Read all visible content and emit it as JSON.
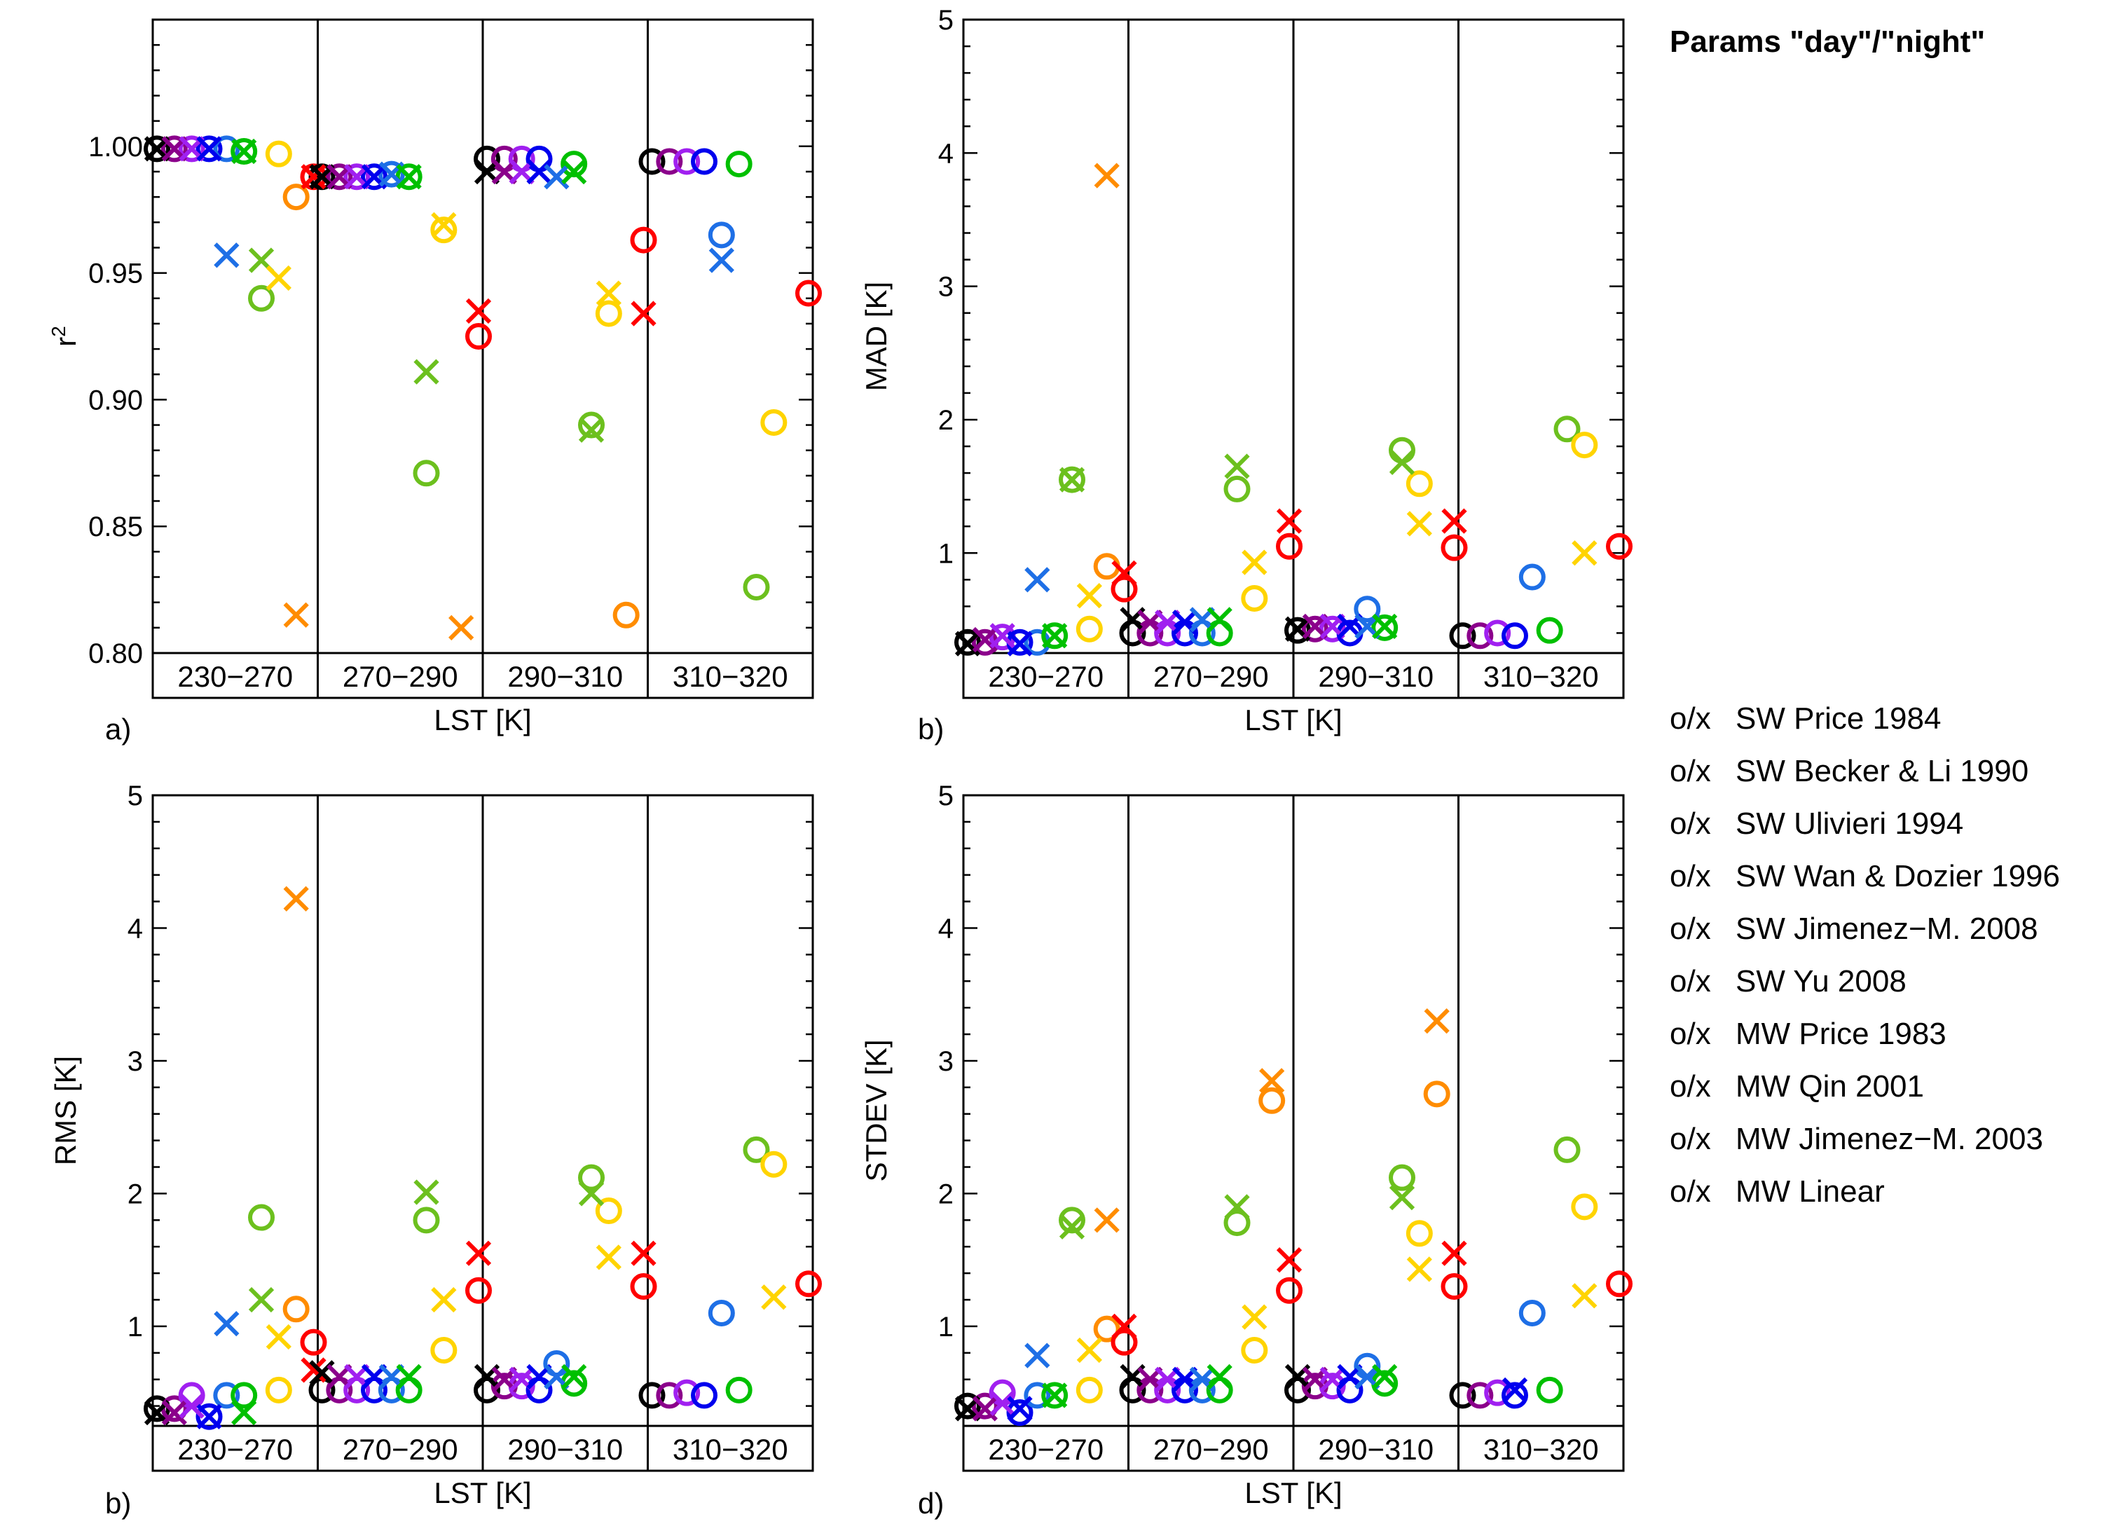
{
  "title": "Params \"day\"/\"night\"",
  "legend_key": "o/x",
  "methods": [
    {
      "name": "SW Price 1984",
      "color": "#000000"
    },
    {
      "name": "SW Becker & Li 1990",
      "color": "#8B008B"
    },
    {
      "name": "SW Ulivieri 1994",
      "color": "#A020F0"
    },
    {
      "name": "SW Wan & Dozier 1996",
      "color": "#0000EE"
    },
    {
      "name": "SW Jimenez−M. 2008",
      "color": "#1E6FE6"
    },
    {
      "name": "SW Yu 2008",
      "color": "#00C000"
    },
    {
      "name": "MW Price 1983",
      "color": "#6CC01E"
    },
    {
      "name": "MW Qin 2001",
      "color": "#FFD400"
    },
    {
      "name": "MW Jimenez−M. 2003",
      "color": "#FF8C00"
    },
    {
      "name": "MW Linear",
      "color": "#FF0000"
    }
  ],
  "chart_data": [
    {
      "id": "a",
      "panel_label": "a)",
      "type": "scatter",
      "ylabel": "r",
      "ylabel_sup": "2",
      "xlabel": "LST [K]",
      "bins": [
        "230−270",
        "270−290",
        "290−310",
        "310−320"
      ],
      "ylim": [
        0.8,
        1.05
      ],
      "yticks": [
        0.8,
        0.85,
        0.9,
        0.95,
        1.0
      ],
      "ytick_labels": [
        "0.80",
        "0.85",
        "0.90",
        "0.95",
        "1.00"
      ],
      "day": [
        [
          0.999,
          0.999,
          0.999,
          0.999,
          0.999,
          0.998,
          0.94,
          0.997,
          0.98,
          0.988
        ],
        [
          0.988,
          0.988,
          0.988,
          0.988,
          0.989,
          0.988,
          0.871,
          0.967,
          null,
          0.925
        ],
        [
          0.995,
          0.995,
          0.995,
          0.995,
          null,
          0.993,
          0.89,
          0.934,
          0.815,
          0.963
        ],
        [
          0.994,
          0.994,
          0.994,
          0.994,
          0.965,
          0.993,
          0.826,
          0.891,
          null,
          0.942
        ]
      ],
      "night": [
        [
          0.999,
          0.999,
          0.999,
          0.999,
          0.957,
          0.998,
          0.955,
          0.948,
          0.815,
          0.988
        ],
        [
          0.988,
          0.988,
          0.988,
          0.988,
          0.989,
          0.988,
          0.911,
          0.969,
          0.81,
          0.935
        ],
        [
          0.99,
          0.99,
          0.99,
          0.99,
          0.988,
          0.99,
          0.888,
          0.942,
          null,
          0.934
        ],
        [
          null,
          null,
          null,
          null,
          0.955,
          null,
          null,
          null,
          null,
          null
        ]
      ]
    },
    {
      "id": "b",
      "panel_label": "b)",
      "type": "scatter",
      "ylabel": "MAD [K]",
      "ylabel_sup": "",
      "xlabel": "LST [K]",
      "bins": [
        "230−270",
        "270−290",
        "290−310",
        "310−320"
      ],
      "ylim": [
        0.25,
        5.0
      ],
      "yticks": [
        1,
        2,
        3,
        4,
        5
      ],
      "ytick_labels": [
        "1",
        "2",
        "3",
        "4",
        "5"
      ],
      "day": [
        [
          0.33,
          0.33,
          0.37,
          0.33,
          0.33,
          0.38,
          1.55,
          0.43,
          0.9,
          0.73
        ],
        [
          0.4,
          0.4,
          0.4,
          0.4,
          0.4,
          0.4,
          1.48,
          0.66,
          null,
          1.05
        ],
        [
          0.42,
          0.43,
          0.43,
          0.4,
          0.58,
          0.44,
          1.77,
          1.52,
          null,
          1.04
        ],
        [
          0.38,
          0.38,
          0.4,
          0.38,
          0.82,
          0.42,
          1.93,
          1.81,
          null,
          1.05
        ]
      ],
      "night": [
        [
          0.32,
          0.35,
          0.38,
          0.32,
          0.8,
          0.38,
          1.55,
          0.68,
          3.83,
          0.85
        ],
        [
          0.5,
          0.48,
          0.48,
          0.48,
          0.5,
          0.5,
          1.65,
          0.93,
          null,
          1.24
        ],
        [
          0.43,
          0.45,
          0.45,
          0.45,
          0.45,
          0.45,
          1.68,
          1.22,
          null,
          1.24
        ],
        [
          null,
          null,
          null,
          null,
          null,
          null,
          null,
          1.0,
          null,
          null
        ]
      ]
    },
    {
      "id": "c",
      "panel_label": "b)",
      "type": "scatter",
      "ylabel": "RMS [K]",
      "ylabel_sup": "",
      "xlabel": "LST [K]",
      "bins": [
        "230−270",
        "270−290",
        "290−310",
        "310−320"
      ],
      "ylim": [
        0.25,
        5.0
      ],
      "yticks": [
        1,
        2,
        3,
        4,
        5
      ],
      "ytick_labels": [
        "1",
        "2",
        "3",
        "4",
        "5"
      ],
      "day": [
        [
          0.38,
          0.38,
          0.48,
          0.32,
          0.48,
          0.48,
          1.82,
          0.52,
          1.13,
          0.88
        ],
        [
          0.52,
          0.52,
          0.52,
          0.52,
          0.52,
          0.52,
          1.8,
          0.82,
          null,
          1.27
        ],
        [
          0.52,
          0.55,
          0.55,
          0.52,
          0.72,
          0.57,
          2.12,
          1.87,
          null,
          1.3
        ],
        [
          0.48,
          0.48,
          0.5,
          0.48,
          1.1,
          0.52,
          2.33,
          2.22,
          null,
          1.32
        ]
      ],
      "night": [
        [
          0.35,
          0.35,
          0.4,
          0.32,
          1.02,
          0.35,
          1.2,
          0.92,
          4.22,
          0.67
        ],
        [
          0.65,
          0.62,
          0.62,
          0.62,
          0.62,
          0.62,
          2.01,
          1.2,
          null,
          1.55
        ],
        [
          0.62,
          0.6,
          0.6,
          0.62,
          0.62,
          0.62,
          2.0,
          1.52,
          null,
          1.55
        ],
        [
          null,
          null,
          null,
          null,
          null,
          null,
          null,
          1.22,
          null,
          null
        ]
      ]
    },
    {
      "id": "d",
      "panel_label": "d)",
      "type": "scatter",
      "ylabel": "STDEV [K]",
      "ylabel_sup": "",
      "xlabel": "LST [K]",
      "bins": [
        "230−270",
        "270−290",
        "290−310",
        "310−320"
      ],
      "ylim": [
        0.25,
        5.0
      ],
      "yticks": [
        1,
        2,
        3,
        4,
        5
      ],
      "ytick_labels": [
        "1",
        "2",
        "3",
        "4",
        "5"
      ],
      "day": [
        [
          0.4,
          0.4,
          0.5,
          0.35,
          0.48,
          0.48,
          1.8,
          0.52,
          0.98,
          0.88
        ],
        [
          0.52,
          0.52,
          0.52,
          0.52,
          0.52,
          0.52,
          1.78,
          0.82,
          2.7,
          1.27
        ],
        [
          0.52,
          0.55,
          0.55,
          0.52,
          0.7,
          0.57,
          2.12,
          1.7,
          2.75,
          1.3
        ],
        [
          0.48,
          0.48,
          0.5,
          0.48,
          1.1,
          0.52,
          2.33,
          1.9,
          null,
          1.32
        ]
      ],
      "night": [
        [
          0.38,
          0.38,
          0.42,
          0.38,
          0.78,
          0.48,
          1.75,
          0.82,
          1.8,
          1.0
        ],
        [
          0.62,
          0.6,
          0.6,
          0.6,
          0.6,
          0.62,
          1.9,
          1.07,
          2.85,
          1.5
        ],
        [
          0.62,
          0.6,
          0.6,
          0.62,
          0.62,
          0.62,
          1.97,
          1.43,
          3.3,
          1.55
        ],
        [
          null,
          null,
          null,
          0.52,
          null,
          null,
          null,
          1.23,
          null,
          null
        ]
      ]
    }
  ]
}
